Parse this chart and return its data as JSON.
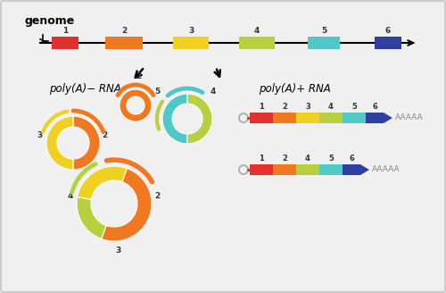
{
  "bg_color": "#f0f0f0",
  "exon_colors": {
    "1": "#e03030",
    "2": "#f07820",
    "3": "#f0d020",
    "4": "#b8d040",
    "5": "#50c8c8",
    "6": "#3040a0"
  },
  "genome_label": "genome",
  "polyA_minus": "poly(A)− RNA",
  "polyA_plus": "poly(A)+ RNA",
  "AAAAA": "AAAAA"
}
